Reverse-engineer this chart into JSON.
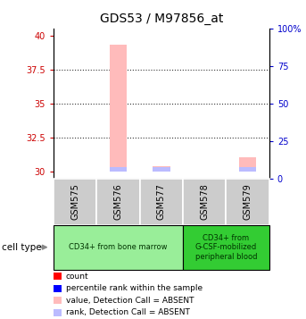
{
  "title": "GDS53 / M97856_at",
  "samples": [
    "GSM575",
    "GSM576",
    "GSM577",
    "GSM578",
    "GSM579"
  ],
  "cell_types": [
    {
      "label": "CD34+ from bone marrow",
      "samples": [
        0,
        1,
        2
      ],
      "color": "#99ee99"
    },
    {
      "label": "CD34+ from\nG-CSF-mobilized\nperipheral blood",
      "samples": [
        3,
        4
      ],
      "color": "#33cc33"
    }
  ],
  "ylim_left": [
    29.5,
    40.5
  ],
  "ylim_right": [
    0,
    100
  ],
  "yticks_left": [
    30,
    32.5,
    35,
    37.5,
    40
  ],
  "yticks_right": [
    0,
    25,
    50,
    75,
    100
  ],
  "ytick_labels_left": [
    "30",
    "32.5",
    "35",
    "37.5",
    "40"
  ],
  "ytick_labels_right": [
    "0",
    "25",
    "50",
    "75",
    "100%"
  ],
  "left_color": "#cc0000",
  "right_color": "#0000cc",
  "bars": [
    {
      "sample_idx": 0,
      "value_absent": null,
      "rank_absent": null
    },
    {
      "sample_idx": 1,
      "value_absent": 39.3,
      "rank_absent": 0.35
    },
    {
      "sample_idx": 2,
      "value_absent": 30.4,
      "rank_absent": 0.35
    },
    {
      "sample_idx": 3,
      "value_absent": null,
      "rank_absent": null
    },
    {
      "sample_idx": 4,
      "value_absent": 31.1,
      "rank_absent": 0.35
    }
  ],
  "baseline": 30.0,
  "color_value_absent": "#ffbbbb",
  "color_rank_absent": "#bbbbff",
  "legend_items": [
    {
      "label": "count",
      "color": "#ff0000"
    },
    {
      "label": "percentile rank within the sample",
      "color": "#0000ff"
    },
    {
      "label": "value, Detection Call = ABSENT",
      "color": "#ffbbbb"
    },
    {
      "label": "rank, Detection Call = ABSENT",
      "color": "#bbbbff"
    }
  ],
  "cell_type_label": "cell type",
  "gray_box_color": "#cccccc",
  "dotted_line_color": "#333333",
  "bar_width": 0.4
}
